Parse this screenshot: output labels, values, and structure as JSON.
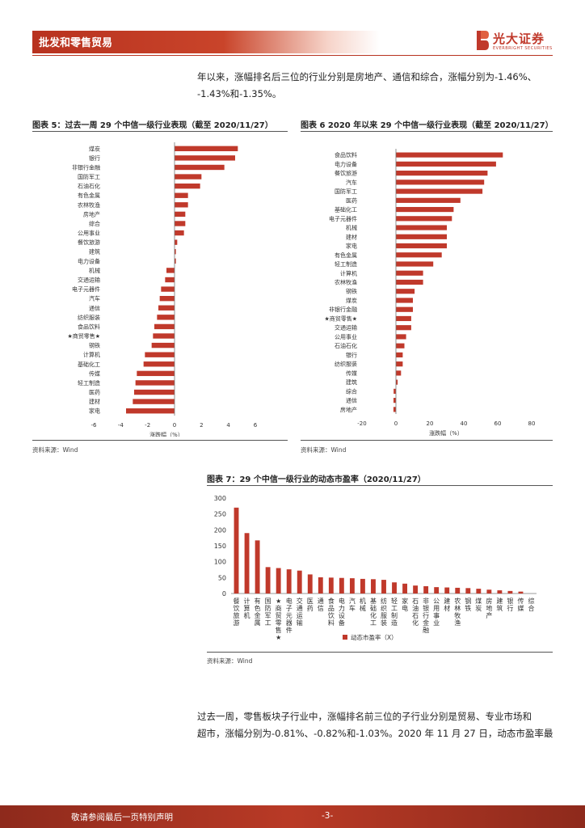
{
  "header": {
    "section": "批发和零售贸易"
  },
  "logo": {
    "name_cn": "光大证券",
    "name_en": "EVERBRIGHT SECURITIES"
  },
  "intro_paragraph": {
    "line1": "年以来，涨幅排名后三位的行业分别是房地产、通信和综合，涨幅分别为-1.46%、",
    "line2": "-1.43%和-1.35%。"
  },
  "chart5": {
    "title": "图表 5：过去一周 29 个中信一级行业表现（截至 2020/11/27）",
    "source": "资料来源：Wind"
  },
  "chart6": {
    "title": "图表 6  2020 年以来 29 个中信一级行业表现（截至 2020/11/27）",
    "source": "资料来源：Wind"
  },
  "chart7": {
    "title": "图表 7：29 个中信一级行业的动态市盈率（2020/11/27）",
    "source": "资料来源：Wind"
  },
  "chart_data": [
    {
      "type": "bar",
      "orientation": "horizontal",
      "categories": [
        "煤炭",
        "银行",
        "非银行金融",
        "国防军工",
        "石油石化",
        "有色金属",
        "农林牧渔",
        "房地产",
        "综合",
        "公用事业",
        "餐饮旅游",
        "建筑",
        "电力设备",
        "机械",
        "交通运输",
        "电子元器件",
        "汽车",
        "通信",
        "纺织服装",
        "食品饮料",
        "★商贸零售★",
        "钢铁",
        "计算机",
        "基础化工",
        "传媒",
        "轻工制造",
        "医药",
        "建材",
        "家电"
      ],
      "values": [
        4.7,
        4.5,
        3.7,
        2.0,
        1.9,
        1.0,
        1.0,
        0.8,
        0.8,
        0.7,
        0.2,
        0.1,
        0.1,
        -0.6,
        -0.7,
        -1.0,
        -1.1,
        -1.2,
        -1.3,
        -1.5,
        -1.6,
        -1.7,
        -2.2,
        -2.3,
        -2.8,
        -2.9,
        -3.0,
        -3.1,
        -3.6
      ],
      "xlabel": "涨跌幅（%）",
      "xlim": [
        -6,
        6
      ],
      "xticks": [
        -6,
        -4,
        -2,
        0,
        2,
        4,
        6
      ],
      "color": "#c0392b"
    },
    {
      "type": "bar",
      "orientation": "horizontal",
      "categories": [
        "食品饮料",
        "电力设备",
        "餐饮旅游",
        "汽车",
        "国防军工",
        "医药",
        "基础化工",
        "电子元器件",
        "机械",
        "建材",
        "家电",
        "有色金属",
        "轻工制造",
        "计算机",
        "农林牧渔",
        "钢铁",
        "煤炭",
        "非银行金融",
        "★商贸零售★",
        "交通运输",
        "公用事业",
        "石油石化",
        "银行",
        "纺织服装",
        "传媒",
        "建筑",
        "综合",
        "通信",
        "房地产"
      ],
      "values": [
        63,
        59,
        54,
        52,
        51,
        38,
        34,
        33,
        30,
        30,
        30,
        27,
        22,
        16,
        16,
        11,
        10,
        10,
        9,
        9,
        6,
        5,
        4,
        4,
        3,
        1,
        -1.35,
        -1.43,
        -1.46
      ],
      "xlabel": "涨跌幅（%）",
      "xlim": [
        -20,
        80
      ],
      "xticks": [
        -20,
        0,
        20,
        40,
        60,
        80
      ],
      "color": "#c0392b"
    },
    {
      "type": "bar",
      "orientation": "vertical",
      "categories": [
        "餐饮旅游",
        "计算机",
        "有色金属",
        "国防军工",
        "★商贸零售★",
        "电子元器件",
        "交通运输",
        "医药",
        "通信",
        "食品饮料",
        "电力设备",
        "汽车",
        "机械",
        "基础化工",
        "纺织服装",
        "轻工制造",
        "家电",
        "石油石化",
        "非银行金融",
        "公用事业",
        "建材",
        "农林牧渔",
        "钢铁",
        "煤炭",
        "房地产",
        "建筑",
        "银行",
        "传媒",
        "综合"
      ],
      "values": [
        270,
        190,
        167,
        83,
        80,
        76,
        72,
        60,
        51,
        50,
        49,
        48,
        46,
        45,
        43,
        35,
        31,
        25,
        23,
        20,
        19,
        18,
        17,
        15,
        12,
        10,
        8,
        6,
        0
      ],
      "legend": "动态市盈率（X）",
      "ylim": [
        0,
        300
      ],
      "yticks": [
        0,
        50,
        100,
        150,
        200,
        250,
        300
      ],
      "color": "#c0392b"
    }
  ],
  "closing_paragraph": {
    "line1": "过去一周，零售板块子行业中，涨幅排名前三位的子行业分别是贸易、专业市场和",
    "line2": "超市，涨幅分别为-0.81%、-0.82%和-1.03%。2020 年 11 月 27 日，动态市盈率最"
  },
  "footer": {
    "disclaimer": "敬请参阅最后一页特别声明",
    "page": "-3-"
  }
}
